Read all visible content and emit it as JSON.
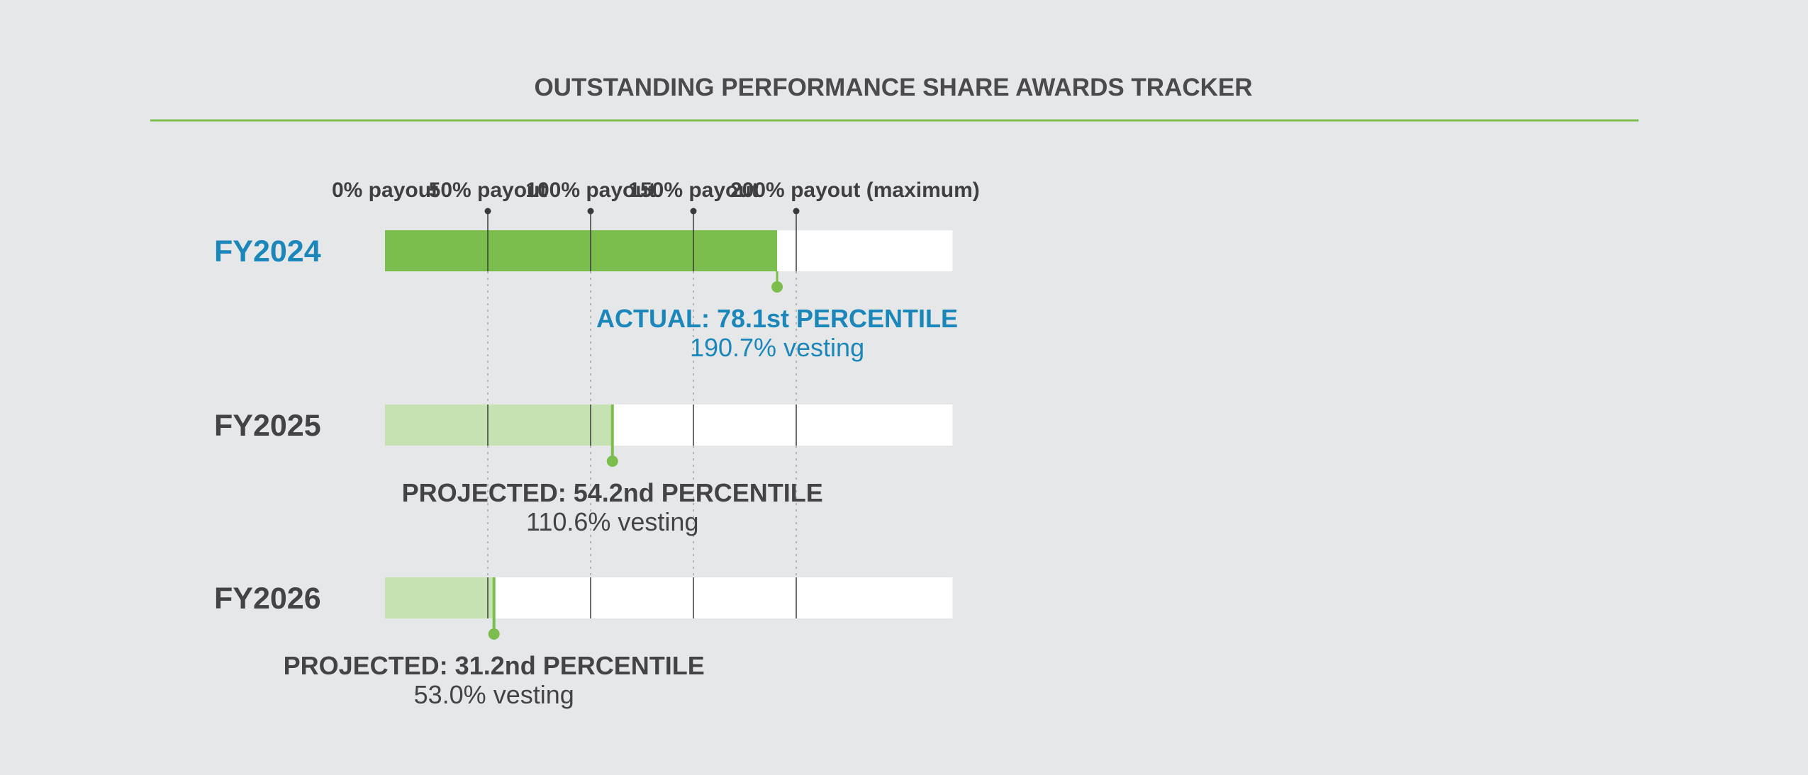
{
  "title": "OUTSTANDING PERFORMANCE SHARE AWARDS TRACKER",
  "colors": {
    "background": "#e6e7e9",
    "rule": "#7dbe4f",
    "actual_fill": "#7cbe4e",
    "projected_fill": "#c6e1b2",
    "marker": "#7cbe4e",
    "track": "#ffffff",
    "actual_text": "#1b86b9",
    "projected_text": "#434345",
    "tick_line": "#3a3a3c",
    "dotted_line": "#b5b6b8"
  },
  "chart_data": {
    "type": "bar",
    "orientation": "horizontal",
    "title": "OUTSTANDING PERFORMANCE SHARE AWARDS TRACKER",
    "xlim": [
      0,
      200
    ],
    "ticks": [
      {
        "value": 0,
        "label": "0% payout"
      },
      {
        "value": 50,
        "label": "50% payout"
      },
      {
        "value": 100,
        "label": "100% payout"
      },
      {
        "value": 150,
        "label": "150% payout"
      },
      {
        "value": 200,
        "label": "200% payout (maximum)"
      }
    ],
    "track_max": 276,
    "rows": [
      {
        "label": "FY2024",
        "value": 190.7,
        "kind": "actual",
        "annotation_title": "ACTUAL: 78.1st PERCENTILE",
        "annotation_sub": "190.7% vesting"
      },
      {
        "label": "FY2025",
        "value": 110.6,
        "kind": "projected",
        "annotation_title": "PROJECTED: 54.2nd PERCENTILE",
        "annotation_sub": "110.6% vesting"
      },
      {
        "label": "FY2026",
        "value": 53.0,
        "kind": "projected",
        "annotation_title": "PROJECTED: 31.2nd PERCENTILE",
        "annotation_sub": "53.0% vesting"
      }
    ]
  }
}
